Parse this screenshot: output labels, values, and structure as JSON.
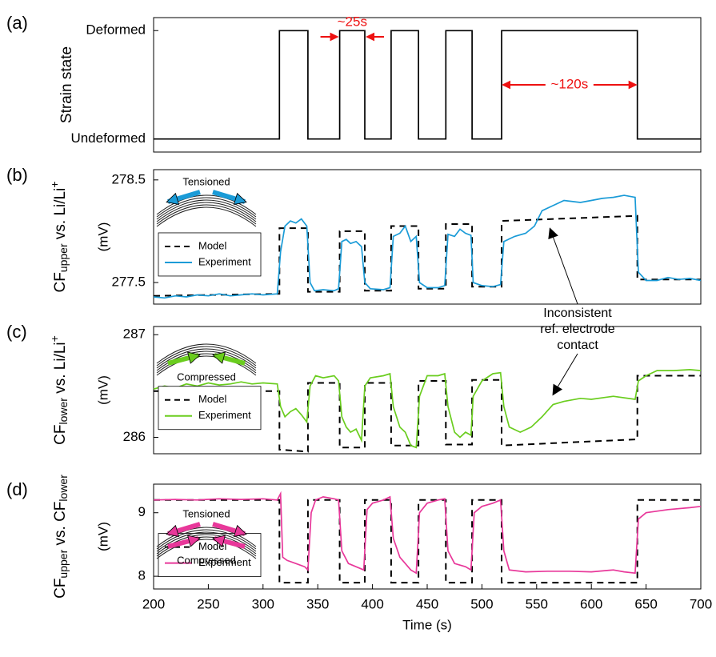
{
  "chart_data": [
    {
      "type": "line",
      "panel": "(a)",
      "ylabel": [
        {
          "text": "Strain state"
        }
      ],
      "xlim": [
        200,
        700
      ],
      "ylim": [
        -0.12,
        1.12
      ],
      "yticks": [
        {
          "value": 0,
          "label": "Undeformed"
        },
        {
          "value": 1,
          "label": "Deformed"
        }
      ],
      "series": [
        {
          "color": "#000000",
          "style": "solid",
          "x": [
            200,
            315,
            315,
            341,
            341,
            370,
            370,
            393,
            393,
            417,
            417,
            442,
            442,
            467,
            467,
            491,
            491,
            518,
            518,
            642,
            642,
            700
          ],
          "values": [
            0,
            0,
            1,
            1,
            0,
            0,
            1,
            1,
            0,
            0,
            1,
            1,
            0,
            0,
            1,
            1,
            0,
            0,
            1,
            1,
            0,
            0
          ]
        }
      ],
      "annotations": [
        {
          "text": "~25s",
          "span": [
            370,
            393
          ],
          "style": "outside",
          "color": "#ee1111"
        },
        {
          "text": "~120s",
          "span": [
            518,
            642
          ],
          "style": "inside",
          "color": "#ee1111"
        }
      ]
    },
    {
      "type": "line",
      "panel": "(b)",
      "ylabel": [
        {
          "text": "CF"
        },
        {
          "text": "upper",
          "sub": true
        },
        {
          "text": " vs. Li/Li"
        },
        {
          "text": "+",
          "sup": true
        }
      ],
      "yunit": "(mV)",
      "xlim": [
        200,
        700
      ],
      "ylim": [
        277.29,
        278.6
      ],
      "yticks": [
        277.5,
        278.5
      ],
      "inset": "tension",
      "inset_labels": [
        "Tensioned"
      ],
      "series": [
        {
          "name": "Model",
          "color": "#000000",
          "style": "dashed",
          "x": [
            200,
            315,
            315,
            341,
            341,
            370,
            370,
            393,
            393,
            417,
            417,
            442,
            442,
            467,
            467,
            491,
            491,
            518,
            518,
            642,
            642,
            700
          ],
          "values": [
            277.37,
            277.39,
            278.03,
            278.03,
            277.41,
            277.41,
            278.0,
            278.0,
            277.42,
            277.42,
            278.05,
            278.05,
            277.44,
            277.44,
            278.07,
            278.07,
            277.46,
            277.46,
            278.1,
            278.15,
            277.53,
            277.53
          ]
        },
        {
          "name": "Experiment",
          "color": "#1a9bd7",
          "style": "solid",
          "x": [
            200,
            210,
            220,
            230,
            240,
            250,
            260,
            270,
            280,
            290,
            300,
            313,
            316,
            320,
            325,
            330,
            335,
            340,
            343,
            347,
            355,
            365,
            369,
            372,
            376,
            380,
            385,
            390,
            393,
            398,
            410,
            416,
            419,
            425,
            430,
            435,
            440,
            443,
            450,
            460,
            466,
            469,
            475,
            480,
            485,
            490,
            492,
            500,
            510,
            517,
            520,
            530,
            540,
            548,
            555,
            565,
            575,
            590,
            600,
            610,
            620,
            630,
            640,
            643,
            650,
            660,
            670,
            680,
            690,
            700
          ],
          "values": [
            277.36,
            277.35,
            277.37,
            277.36,
            277.38,
            277.37,
            277.39,
            277.37,
            277.38,
            277.39,
            277.38,
            277.39,
            277.8,
            278.05,
            278.1,
            278.08,
            278.12,
            278.05,
            277.5,
            277.42,
            277.43,
            277.42,
            277.44,
            277.9,
            277.92,
            277.88,
            277.9,
            277.85,
            277.5,
            277.44,
            277.43,
            277.45,
            277.95,
            277.98,
            278.05,
            277.9,
            277.95,
            277.5,
            277.45,
            277.45,
            277.47,
            277.97,
            277.95,
            278.02,
            277.98,
            277.96,
            277.5,
            277.47,
            277.46,
            277.48,
            277.9,
            277.95,
            277.98,
            278.05,
            278.2,
            278.25,
            278.3,
            278.28,
            278.3,
            278.32,
            278.33,
            278.35,
            278.33,
            277.6,
            277.52,
            277.52,
            277.55,
            277.53,
            277.54,
            277.52
          ]
        }
      ]
    },
    {
      "type": "line",
      "panel": "(c)",
      "ylabel": [
        {
          "text": "CF"
        },
        {
          "text": "lower",
          "sub": true
        },
        {
          "text": " vs. Li/Li"
        },
        {
          "text": "+",
          "sup": true
        }
      ],
      "yunit": "(mV)",
      "xlim": [
        200,
        700
      ],
      "ylim": [
        285.84,
        287.08
      ],
      "yticks": [
        286,
        287
      ],
      "inset": "compression",
      "inset_labels": [
        "Compressed"
      ],
      "series": [
        {
          "name": "Model",
          "color": "#000000",
          "style": "dashed",
          "x": [
            200,
            315,
            315,
            341,
            341,
            370,
            370,
            393,
            393,
            417,
            417,
            442,
            442,
            467,
            467,
            491,
            491,
            518,
            518,
            642,
            642,
            700
          ],
          "values": [
            286.45,
            286.45,
            285.88,
            285.86,
            286.53,
            286.53,
            285.9,
            285.9,
            286.53,
            286.53,
            285.92,
            285.92,
            286.55,
            286.55,
            285.93,
            285.93,
            286.56,
            286.56,
            285.92,
            285.98,
            286.6,
            286.6
          ]
        },
        {
          "name": "Experiment",
          "color": "#6acd1e",
          "style": "solid",
          "x": [
            200,
            210,
            220,
            230,
            240,
            250,
            260,
            270,
            280,
            290,
            300,
            313,
            316,
            320,
            325,
            330,
            335,
            340,
            343,
            348,
            355,
            365,
            369,
            372,
            376,
            380,
            385,
            390,
            393,
            398,
            410,
            416,
            419,
            425,
            430,
            435,
            440,
            443,
            450,
            460,
            466,
            469,
            475,
            480,
            485,
            490,
            492,
            500,
            510,
            517,
            520,
            525,
            535,
            545,
            555,
            565,
            575,
            590,
            600,
            620,
            640,
            643,
            650,
            660,
            675,
            690,
            700
          ],
          "values": [
            286.47,
            286.5,
            286.48,
            286.52,
            286.5,
            286.53,
            286.51,
            286.52,
            286.54,
            286.52,
            286.53,
            286.52,
            286.3,
            286.2,
            286.25,
            286.28,
            286.22,
            286.15,
            286.5,
            286.6,
            286.58,
            286.6,
            286.55,
            286.2,
            286.1,
            286.05,
            286.08,
            285.97,
            286.5,
            286.58,
            286.6,
            286.62,
            286.3,
            286.1,
            286.05,
            285.92,
            285.9,
            286.4,
            286.6,
            286.6,
            286.62,
            286.3,
            286.05,
            286.0,
            286.05,
            286.02,
            286.4,
            286.55,
            286.62,
            286.63,
            286.3,
            286.1,
            286.05,
            286.1,
            286.2,
            286.32,
            286.35,
            286.38,
            286.37,
            286.4,
            286.37,
            286.55,
            286.6,
            286.65,
            286.65,
            286.66,
            286.65
          ]
        }
      ]
    },
    {
      "type": "line",
      "panel": "(d)",
      "ylabel": [
        {
          "text": "CF"
        },
        {
          "text": "upper",
          "sub": true
        },
        {
          "text": " vs. CF"
        },
        {
          "text": "lower",
          "sub": true
        }
      ],
      "yunit": "(mV)",
      "xlim": [
        200,
        700
      ],
      "ylim": [
        7.8,
        9.45
      ],
      "yticks": [
        8,
        9
      ],
      "xticks": [
        200,
        250,
        300,
        350,
        400,
        450,
        500,
        550,
        600,
        650,
        700
      ],
      "xlabel": "Time (s)",
      "inset": "both",
      "inset_labels": [
        "Tensioned",
        "Compressed"
      ],
      "series": [
        {
          "name": "Model",
          "color": "#000000",
          "style": "dashed",
          "x": [
            200,
            315,
            315,
            341,
            341,
            370,
            370,
            393,
            393,
            417,
            417,
            442,
            442,
            467,
            467,
            491,
            491,
            518,
            518,
            642,
            642,
            700
          ],
          "values": [
            9.2,
            9.2,
            7.9,
            7.9,
            9.2,
            9.2,
            7.9,
            7.9,
            9.2,
            9.2,
            7.9,
            7.9,
            9.2,
            9.2,
            7.9,
            7.9,
            9.2,
            9.2,
            7.9,
            7.9,
            9.2,
            9.2
          ]
        },
        {
          "name": "Experiment",
          "color": "#e8389a",
          "style": "solid",
          "x": [
            200,
            220,
            240,
            260,
            280,
            300,
            313,
            316,
            318,
            322,
            330,
            338,
            341,
            344,
            348,
            355,
            365,
            369,
            372,
            378,
            385,
            392,
            395,
            400,
            410,
            416,
            419,
            425,
            435,
            440,
            443,
            450,
            460,
            466,
            469,
            475,
            485,
            490,
            493,
            500,
            510,
            517,
            520,
            525,
            540,
            560,
            580,
            600,
            620,
            630,
            640,
            643,
            650,
            670,
            690,
            700
          ],
          "values": [
            9.2,
            9.21,
            9.2,
            9.22,
            9.21,
            9.22,
            9.2,
            9.3,
            8.3,
            8.25,
            8.2,
            8.15,
            8.1,
            9.0,
            9.2,
            9.25,
            9.22,
            9.2,
            8.4,
            8.2,
            8.15,
            8.1,
            9.05,
            9.15,
            9.2,
            9.25,
            8.6,
            8.3,
            8.1,
            8.05,
            9.0,
            9.15,
            9.2,
            9.22,
            8.4,
            8.2,
            8.15,
            8.1,
            9.0,
            9.1,
            9.15,
            9.2,
            8.4,
            8.1,
            8.07,
            8.08,
            8.08,
            8.07,
            8.1,
            8.07,
            8.05,
            8.9,
            9.0,
            9.05,
            9.08,
            9.1
          ]
        }
      ]
    }
  ],
  "annotation": {
    "lines": [
      "Inconsistent",
      "ref. electrode",
      "contact"
    ]
  }
}
